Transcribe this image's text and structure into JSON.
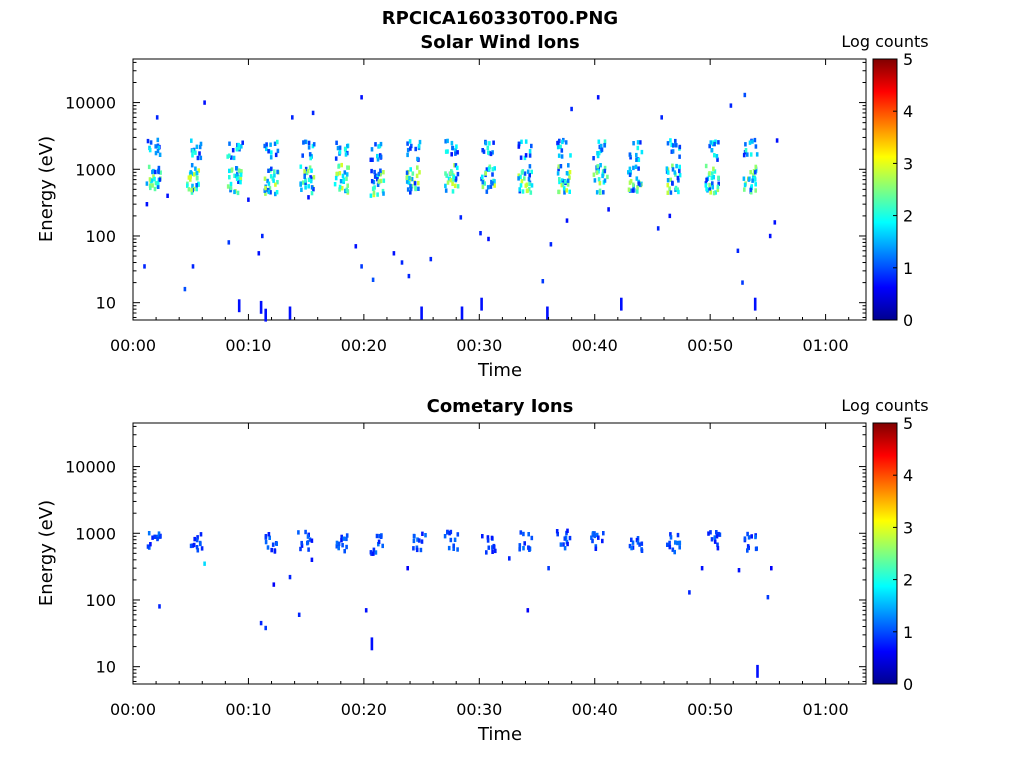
{
  "figure": {
    "title": "RPCICA160330T00.PNG"
  },
  "chart_data": [
    {
      "type": "heatmap",
      "title": "Solar Wind Ions",
      "xlabel": "Time",
      "ylabel": "Energy (eV)",
      "x_ticks": [
        "00:00",
        "00:10",
        "00:20",
        "00:30",
        "00:40",
        "00:50",
        "01:00"
      ],
      "x_range_min": [
        0,
        63.5
      ],
      "y_ticks": [
        "10",
        "100",
        "1000",
        "10000"
      ],
      "y_scale": "log",
      "y_range_eV": [
        5.5,
        45000
      ],
      "colorbar": {
        "label": "Log counts",
        "ticks": [
          "0",
          "1",
          "2",
          "3",
          "4",
          "5"
        ],
        "range": [
          0,
          5
        ]
      },
      "scans": [
        {
          "t": 1.8,
          "e1": 750,
          "e2": 2000
        },
        {
          "t": 5.3,
          "e1": 720,
          "e2": 2000
        },
        {
          "t": 8.8,
          "e1": 700,
          "e2": 2000
        },
        {
          "t": 12.0,
          "e1": 680,
          "e2": 1900
        },
        {
          "t": 15.1,
          "e1": 700,
          "e2": 2000
        },
        {
          "t": 18.1,
          "e1": 720,
          "e2": 1900
        },
        {
          "t": 21.2,
          "e1": 650,
          "e2": 1900
        },
        {
          "t": 24.3,
          "e1": 680,
          "e2": 1900
        },
        {
          "t": 27.6,
          "e1": 750,
          "e2": 2000
        },
        {
          "t": 30.8,
          "e1": 700,
          "e2": 1900
        },
        {
          "t": 34.0,
          "e1": 720,
          "e2": 2000
        },
        {
          "t": 37.3,
          "e1": 720,
          "e2": 2000
        },
        {
          "t": 40.5,
          "e1": 720,
          "e2": 2000
        },
        {
          "t": 43.5,
          "e1": 700,
          "e2": 1900
        },
        {
          "t": 46.8,
          "e1": 720,
          "e2": 2000
        },
        {
          "t": 50.2,
          "e1": 700,
          "e2": 1900
        },
        {
          "t": 53.5,
          "e1": 720,
          "e2": 2000
        }
      ],
      "sparse": [
        {
          "t": 2.1,
          "e": 6000,
          "c": 0.8
        },
        {
          "t": 6.2,
          "e": 10000,
          "c": 0.7
        },
        {
          "t": 19.8,
          "e": 12000,
          "c": 0.7
        },
        {
          "t": 38.0,
          "e": 8000,
          "c": 0.8
        },
        {
          "t": 40.3,
          "e": 12000,
          "c": 0.7
        },
        {
          "t": 51.8,
          "e": 9000,
          "c": 0.8
        },
        {
          "t": 53.0,
          "e": 13000,
          "c": 1.0
        },
        {
          "t": 13.8,
          "e": 6000,
          "c": 0.8
        },
        {
          "t": 15.6,
          "e": 7000,
          "c": 0.8
        },
        {
          "t": 45.8,
          "e": 6000,
          "c": 0.8
        },
        {
          "t": 9.5,
          "e": 2500,
          "c": 0.8
        },
        {
          "t": 55.8,
          "e": 2700,
          "c": 0.7
        },
        {
          "t": 1.2,
          "e": 300,
          "c": 0.7
        },
        {
          "t": 3.0,
          "e": 400,
          "c": 0.7
        },
        {
          "t": 8.3,
          "e": 80,
          "c": 0.9
        },
        {
          "t": 10.0,
          "e": 350,
          "c": 0.7
        },
        {
          "t": 11.2,
          "e": 100,
          "c": 0.8
        },
        {
          "t": 10.9,
          "e": 55,
          "c": 0.7
        },
        {
          "t": 15.2,
          "e": 380,
          "c": 0.7
        },
        {
          "t": 19.3,
          "e": 70,
          "c": 0.7
        },
        {
          "t": 19.8,
          "e": 35,
          "c": 0.9
        },
        {
          "t": 20.8,
          "e": 22,
          "c": 1.0
        },
        {
          "t": 22.6,
          "e": 55,
          "c": 0.7
        },
        {
          "t": 23.3,
          "e": 40,
          "c": 0.8
        },
        {
          "t": 23.9,
          "e": 25,
          "c": 0.8
        },
        {
          "t": 25.8,
          "e": 45,
          "c": 0.8
        },
        {
          "t": 28.4,
          "e": 190,
          "c": 0.8
        },
        {
          "t": 30.1,
          "e": 110,
          "c": 0.8
        },
        {
          "t": 30.8,
          "e": 90,
          "c": 0.7
        },
        {
          "t": 35.5,
          "e": 21,
          "c": 0.9
        },
        {
          "t": 36.2,
          "e": 75,
          "c": 0.8
        },
        {
          "t": 37.6,
          "e": 170,
          "c": 0.7
        },
        {
          "t": 41.2,
          "e": 250,
          "c": 0.7
        },
        {
          "t": 45.5,
          "e": 130,
          "c": 0.8
        },
        {
          "t": 46.5,
          "e": 200,
          "c": 0.7
        },
        {
          "t": 52.4,
          "e": 60,
          "c": 0.8
        },
        {
          "t": 52.8,
          "e": 20,
          "c": 0.9
        },
        {
          "t": 55.2,
          "e": 100,
          "c": 0.7
        },
        {
          "t": 55.6,
          "e": 160,
          "c": 0.7
        },
        {
          "t": 1.0,
          "e": 35,
          "c": 0.8
        },
        {
          "t": 4.5,
          "e": 16,
          "c": 1.0
        },
        {
          "t": 5.2,
          "e": 35,
          "c": 0.8
        }
      ],
      "low_bars": [
        {
          "t": 9.2,
          "e": 9.0
        },
        {
          "t": 11.1,
          "e": 8.5
        },
        {
          "t": 11.5,
          "e": 6.5
        },
        {
          "t": 13.6,
          "e": 7.0
        },
        {
          "t": 25.0,
          "e": 7.0
        },
        {
          "t": 28.5,
          "e": 7.0
        },
        {
          "t": 30.2,
          "e": 9.5
        },
        {
          "t": 35.9,
          "e": 7.0
        },
        {
          "t": 42.3,
          "e": 9.5
        },
        {
          "t": 53.9,
          "e": 9.5
        }
      ]
    },
    {
      "type": "heatmap",
      "title": "Cometary Ions",
      "xlabel": "Time",
      "ylabel": "Energy (eV)",
      "x_ticks": [
        "00:00",
        "00:10",
        "00:20",
        "00:30",
        "00:40",
        "00:50",
        "01:00"
      ],
      "x_range_min": [
        0,
        63.5
      ],
      "y_ticks": [
        "10",
        "100",
        "1000",
        "10000"
      ],
      "y_scale": "log",
      "y_range_eV": [
        5.5,
        45000
      ],
      "colorbar": {
        "label": "Log counts",
        "ticks": [
          "0",
          "1",
          "2",
          "3",
          "4",
          "5"
        ],
        "range": [
          0,
          5
        ]
      },
      "scans": [
        {
          "t": 1.9,
          "e1": 800,
          "e2": 0
        },
        {
          "t": 5.5,
          "e1": 760,
          "e2": 0
        },
        {
          "t": 12.0,
          "e1": 720,
          "e2": 0
        },
        {
          "t": 14.9,
          "e1": 760,
          "e2": 0
        },
        {
          "t": 18.2,
          "e1": 700,
          "e2": 0
        },
        {
          "t": 21.2,
          "e1": 680,
          "e2": 0
        },
        {
          "t": 24.8,
          "e1": 720,
          "e2": 0
        },
        {
          "t": 27.6,
          "e1": 780,
          "e2": 0
        },
        {
          "t": 30.8,
          "e1": 700,
          "e2": 0
        },
        {
          "t": 34.0,
          "e1": 760,
          "e2": 0
        },
        {
          "t": 37.3,
          "e1": 800,
          "e2": 0
        },
        {
          "t": 40.3,
          "e1": 740,
          "e2": 0
        },
        {
          "t": 43.5,
          "e1": 700,
          "e2": 0
        },
        {
          "t": 46.8,
          "e1": 720,
          "e2": 0
        },
        {
          "t": 50.3,
          "e1": 760,
          "e2": 0
        },
        {
          "t": 53.5,
          "e1": 720,
          "e2": 0
        }
      ],
      "sparse": [
        {
          "t": 6.2,
          "e": 350,
          "c": 1.7
        },
        {
          "t": 2.3,
          "e": 80,
          "c": 0.8
        },
        {
          "t": 11.1,
          "e": 45,
          "c": 0.8
        },
        {
          "t": 11.5,
          "e": 38,
          "c": 0.9
        },
        {
          "t": 14.4,
          "e": 60,
          "c": 0.8
        },
        {
          "t": 13.6,
          "e": 220,
          "c": 0.8
        },
        {
          "t": 12.2,
          "e": 170,
          "c": 0.6
        },
        {
          "t": 20.2,
          "e": 70,
          "c": 0.7
        },
        {
          "t": 23.8,
          "e": 300,
          "c": 0.6
        },
        {
          "t": 34.2,
          "e": 70,
          "c": 0.6
        },
        {
          "t": 36.0,
          "e": 300,
          "c": 0.9
        },
        {
          "t": 48.2,
          "e": 130,
          "c": 0.8
        },
        {
          "t": 49.3,
          "e": 300,
          "c": 0.7
        },
        {
          "t": 52.5,
          "e": 280,
          "c": 0.7
        },
        {
          "t": 55.0,
          "e": 110,
          "c": 0.9
        },
        {
          "t": 55.3,
          "e": 300,
          "c": 0.6
        },
        {
          "t": 15.5,
          "e": 400,
          "c": 0.7
        },
        {
          "t": 32.6,
          "e": 420,
          "c": 0.8
        }
      ],
      "low_bars": [
        {
          "t": 20.7,
          "e": 22
        },
        {
          "t": 54.1,
          "e": 8.5
        }
      ]
    }
  ]
}
